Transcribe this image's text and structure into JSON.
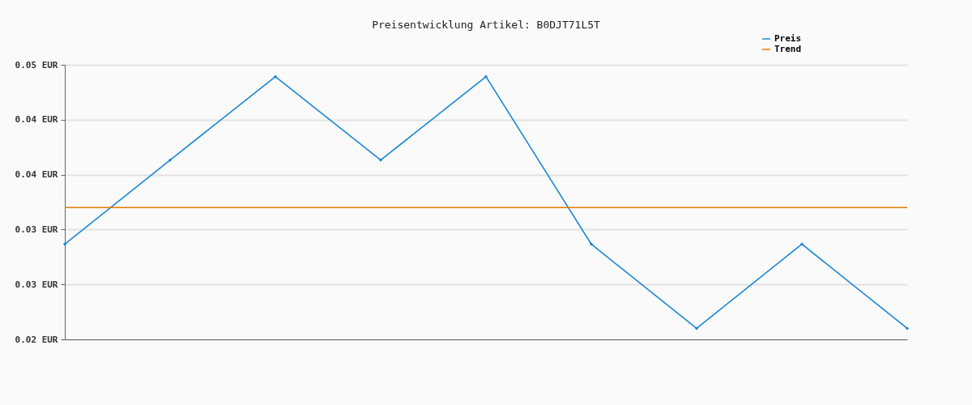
{
  "chart_data": {
    "type": "line",
    "title": "Preisentwicklung Artikel: B0DJT71L5T",
    "categories": [
      null,
      null,
      null,
      null,
      null,
      null,
      null,
      null,
      null
    ],
    "series": [
      {
        "name": "Preis",
        "color": "#1a87d5",
        "values": [
          0.0304,
          0.0396,
          0.0487,
          0.0396,
          0.0487,
          0.0304,
          0.0212,
          0.0304,
          0.0212
        ]
      },
      {
        "name": "Trend",
        "color": "#e07b00",
        "marker": "none",
        "values": [
          0.0344,
          0.0344,
          0.0344,
          0.0344,
          0.0344,
          0.0344,
          0.0344,
          0.0344,
          0.0344
        ]
      }
    ],
    "ylim": [
      0.02,
      0.05
    ],
    "yticks": [
      {
        "value": 0.02,
        "label": "0.02 EUR"
      },
      {
        "value": 0.026,
        "label": "0.03 EUR"
      },
      {
        "value": 0.032,
        "label": "0.03 EUR"
      },
      {
        "value": 0.038,
        "label": "0.04 EUR"
      },
      {
        "value": 0.044,
        "label": "0.04 EUR"
      },
      {
        "value": 0.05,
        "label": "0.05 EUR"
      }
    ],
    "grid": "y",
    "legend": "top right",
    "marker": "diamond",
    "line_style": "solid"
  }
}
